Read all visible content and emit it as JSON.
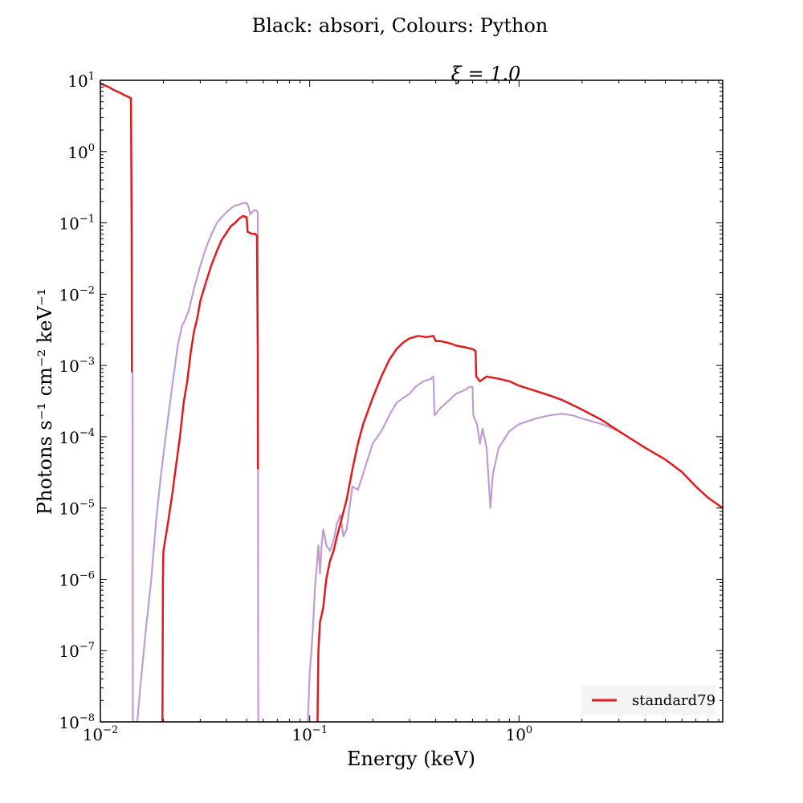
{
  "chart_data": {
    "type": "line",
    "title": "Black: absori, Colours: Python",
    "subtitle": "ξ = 1.0",
    "xlabel": "Energy (keV)",
    "ylabel": "Photons s⁻¹ cm⁻² keV⁻¹",
    "x_scale": "log",
    "y_scale": "log",
    "xlim": [
      0.01,
      9.4
    ],
    "ylim": [
      1e-08,
      10
    ],
    "grid": false,
    "legend_placement": "lower-right",
    "x_ticks": [
      {
        "base": "10",
        "exp": "−2"
      },
      {
        "base": "10",
        "exp": "−1"
      },
      {
        "base": "10",
        "exp": "0"
      }
    ],
    "y_ticks": [
      {
        "base": "10",
        "exp": "1"
      },
      {
        "base": "10",
        "exp": "0"
      },
      {
        "base": "10",
        "exp": "−1"
      },
      {
        "base": "10",
        "exp": "−2"
      },
      {
        "base": "10",
        "exp": "−3"
      },
      {
        "base": "10",
        "exp": "−4"
      },
      {
        "base": "10",
        "exp": "−5"
      },
      {
        "base": "10",
        "exp": "−6"
      },
      {
        "base": "10",
        "exp": "−7"
      },
      {
        "base": "10",
        "exp": "−8"
      }
    ],
    "legend": [
      {
        "label": "standard79",
        "color": "#e31a1c"
      }
    ],
    "series": [
      {
        "name": "standard79",
        "color": "#e31a1c",
        "points": [
          [
            0.01,
            9.0
          ],
          [
            0.0105,
            8.5
          ],
          [
            0.011,
            8.0
          ],
          [
            0.0115,
            7.4
          ],
          [
            0.012,
            7.0
          ],
          [
            0.0125,
            6.6
          ],
          [
            0.013,
            6.2
          ],
          [
            0.0137,
            5.8
          ],
          [
            0.014,
            5.6
          ],
          [
            0.0141,
            0.1
          ],
          [
            0.01415,
            0.0008
          ],
          [
            null,
            null
          ],
          [
            0.0198,
            1e-08
          ],
          [
            0.0199,
            1e-06
          ],
          [
            0.02,
            2.5e-06
          ],
          [
            0.021,
            6e-06
          ],
          [
            0.022,
            1.5e-05
          ],
          [
            0.023,
            4e-05
          ],
          [
            0.024,
            0.0001
          ],
          [
            0.025,
            0.0003
          ],
          [
            0.026,
            0.0006
          ],
          [
            0.027,
            0.0015
          ],
          [
            0.028,
            0.003
          ],
          [
            0.029,
            0.0045
          ],
          [
            0.03,
            0.008
          ],
          [
            0.032,
            0.015
          ],
          [
            0.034,
            0.026
          ],
          [
            0.036,
            0.04
          ],
          [
            0.038,
            0.058
          ],
          [
            0.04,
            0.072
          ],
          [
            0.042,
            0.09
          ],
          [
            0.044,
            0.1
          ],
          [
            0.046,
            0.115
          ],
          [
            0.048,
            0.125
          ],
          [
            0.05,
            0.12
          ],
          [
            0.0505,
            0.075
          ],
          [
            0.053,
            0.07
          ],
          [
            0.055,
            0.07
          ],
          [
            0.056,
            0.065
          ],
          [
            0.0565,
            0.0015
          ],
          [
            0.0566,
            3.5e-05
          ],
          [
            null,
            null
          ],
          [
            0.109,
            1e-08
          ],
          [
            0.11,
            1e-07
          ],
          [
            0.112,
            2.5e-07
          ],
          [
            0.116,
            4e-07
          ],
          [
            0.12,
            1e-06
          ],
          [
            0.125,
            1.8e-06
          ],
          [
            0.13,
            2.5e-06
          ],
          [
            0.135,
            4e-06
          ],
          [
            0.14,
            6e-06
          ],
          [
            0.15,
            1.3e-05
          ],
          [
            0.16,
            3.5e-05
          ],
          [
            0.17,
            8e-05
          ],
          [
            0.18,
            0.00015
          ],
          [
            0.2,
            0.00035
          ],
          [
            0.22,
            0.0007
          ],
          [
            0.24,
            0.0012
          ],
          [
            0.26,
            0.0017
          ],
          [
            0.28,
            0.0021
          ],
          [
            0.3,
            0.0024
          ],
          [
            0.33,
            0.0026
          ],
          [
            0.36,
            0.0025
          ],
          [
            0.39,
            0.0026
          ],
          [
            0.4,
            0.0022
          ],
          [
            0.42,
            0.0022
          ],
          [
            0.45,
            0.0021
          ],
          [
            0.48,
            0.002
          ],
          [
            0.5,
            0.0019
          ],
          [
            0.55,
            0.0018
          ],
          [
            0.6,
            0.0017
          ],
          [
            0.62,
            0.0016
          ],
          [
            0.625,
            0.0007
          ],
          [
            0.65,
            0.0006
          ],
          [
            0.7,
            0.0007
          ],
          [
            0.8,
            0.00065
          ],
          [
            0.9,
            0.0006
          ],
          [
            1.0,
            0.00052
          ],
          [
            1.2,
            0.00044
          ],
          [
            1.4,
            0.00038
          ],
          [
            1.6,
            0.00033
          ],
          [
            1.8,
            0.00028
          ],
          [
            2.0,
            0.00024
          ],
          [
            2.5,
            0.00017
          ],
          [
            3.0,
            0.00012
          ],
          [
            3.5,
            9e-05
          ],
          [
            4.0,
            7e-05
          ],
          [
            5.0,
            4.8e-05
          ],
          [
            6.0,
            3.2e-05
          ],
          [
            7.0,
            2e-05
          ],
          [
            8.0,
            1.4e-05
          ],
          [
            9.4,
            1e-05
          ]
        ]
      },
      {
        "name": "",
        "color": "#c39bd3",
        "points": [
          [
            0.01425,
            0.0008
          ],
          [
            0.0143,
            1e-08
          ],
          [
            null,
            null
          ],
          [
            0.015,
            1e-08
          ],
          [
            0.0155,
            3e-08
          ],
          [
            0.0165,
            2e-07
          ],
          [
            0.0175,
            1e-06
          ],
          [
            0.0185,
            7e-06
          ],
          [
            0.0195,
            3e-05
          ],
          [
            0.0205,
            0.0001
          ],
          [
            0.0215,
            0.0003
          ],
          [
            0.0225,
            0.0008
          ],
          [
            0.0235,
            0.002
          ],
          [
            0.0245,
            0.0035
          ],
          [
            0.0255,
            0.0045
          ],
          [
            0.0265,
            0.006
          ],
          [
            0.028,
            0.012
          ],
          [
            0.03,
            0.025
          ],
          [
            0.032,
            0.045
          ],
          [
            0.034,
            0.07
          ],
          [
            0.036,
            0.1
          ],
          [
            0.038,
            0.12
          ],
          [
            0.04,
            0.14
          ],
          [
            0.042,
            0.16
          ],
          [
            0.044,
            0.175
          ],
          [
            0.046,
            0.18
          ],
          [
            0.048,
            0.19
          ],
          [
            0.05,
            0.19
          ],
          [
            0.051,
            0.17
          ],
          [
            0.052,
            0.13
          ],
          [
            0.054,
            0.15
          ],
          [
            0.0555,
            0.15
          ],
          [
            0.0565,
            0.14
          ],
          [
            0.0568,
            1e-08
          ],
          [
            null,
            null
          ],
          [
            0.098,
            1e-08
          ],
          [
            0.1,
            5e-08
          ],
          [
            0.102,
            1e-07
          ],
          [
            0.104,
            2.5e-07
          ],
          [
            0.106,
            8e-07
          ],
          [
            0.108,
            1.5e-06
          ],
          [
            0.11,
            3e-06
          ],
          [
            0.112,
            1.2e-06
          ],
          [
            0.114,
            3e-06
          ],
          [
            0.116,
            5e-06
          ],
          [
            0.118,
            4e-06
          ],
          [
            0.12,
            3e-06
          ],
          [
            0.125,
            2.5e-06
          ],
          [
            0.13,
            3.5e-06
          ],
          [
            0.135,
            6e-06
          ],
          [
            0.14,
            8e-06
          ],
          [
            0.145,
            4e-06
          ],
          [
            0.15,
            5e-06
          ],
          [
            0.16,
            2e-05
          ],
          [
            0.17,
            1.8e-05
          ],
          [
            0.18,
            3e-05
          ],
          [
            0.19,
            5e-05
          ],
          [
            0.2,
            8e-05
          ],
          [
            0.22,
            0.00012
          ],
          [
            0.24,
            0.0002
          ],
          [
            0.26,
            0.0003
          ],
          [
            0.28,
            0.00035
          ],
          [
            0.3,
            0.0004
          ],
          [
            0.32,
            0.0005
          ],
          [
            0.35,
            0.0006
          ],
          [
            0.38,
            0.00065
          ],
          [
            0.39,
            0.0007
          ],
          [
            0.395,
            0.0002
          ],
          [
            0.42,
            0.00025
          ],
          [
            0.45,
            0.0003
          ],
          [
            0.5,
            0.0004
          ],
          [
            0.55,
            0.00045
          ],
          [
            0.58,
            0.0005
          ],
          [
            0.6,
            0.0005
          ],
          [
            0.605,
            0.0002
          ],
          [
            0.63,
            0.00015
          ],
          [
            0.65,
            8e-05
          ],
          [
            0.67,
            0.00013
          ],
          [
            0.7,
            7e-05
          ],
          [
            0.73,
            1e-05
          ],
          [
            0.75,
            3e-05
          ],
          [
            0.8,
            7e-05
          ],
          [
            0.9,
            0.00012
          ],
          [
            1.0,
            0.00015
          ],
          [
            1.2,
            0.00018
          ],
          [
            1.4,
            0.0002
          ],
          [
            1.6,
            0.00021
          ],
          [
            1.8,
            0.0002
          ],
          [
            2.0,
            0.00018
          ],
          [
            2.5,
            0.00015
          ],
          [
            3.0,
            0.00012
          ],
          [
            3.5,
            9e-05
          ],
          [
            4.0,
            7e-05
          ]
        ]
      }
    ]
  }
}
